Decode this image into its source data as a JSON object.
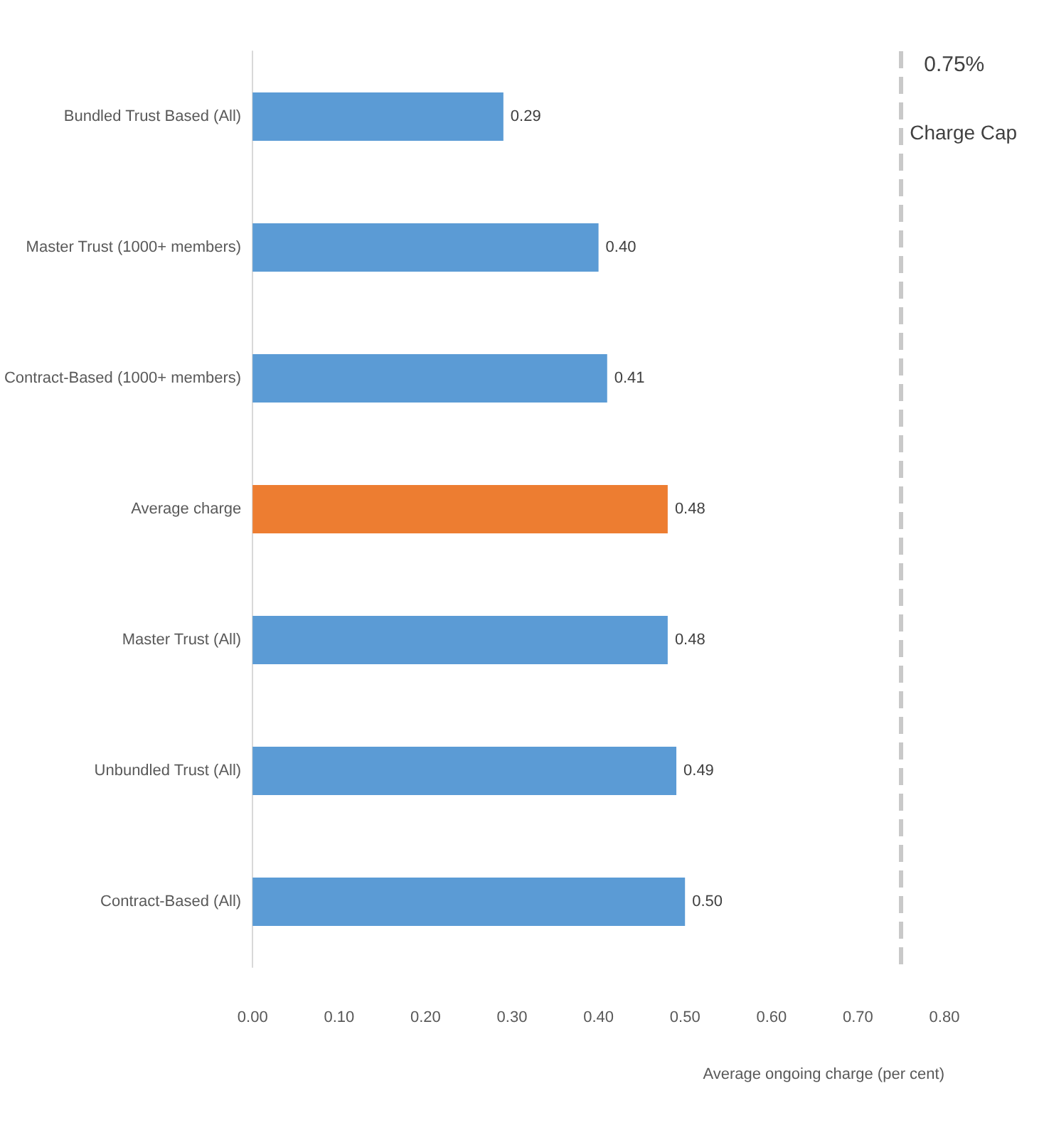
{
  "chart_data": {
    "type": "bar",
    "orientation": "horizontal",
    "categories": [
      "Bundled Trust Based (All)",
      "Master Trust (1000+ members)",
      "Contract-Based (1000+ members)",
      "Average charge",
      "Master Trust (All)",
      "Unbundled Trust (All)",
      "Contract-Based (All)"
    ],
    "values": [
      0.29,
      0.4,
      0.41,
      0.48,
      0.48,
      0.49,
      0.5
    ],
    "colors": [
      "#5b9bd5",
      "#5b9bd5",
      "#5b9bd5",
      "#ed7d31",
      "#5b9bd5",
      "#5b9bd5",
      "#5b9bd5"
    ],
    "value_labels": [
      "0.29",
      "0.40",
      "0.41",
      "0.48",
      "0.48",
      "0.49",
      "0.50"
    ],
    "xlim": [
      0,
      0.8
    ],
    "xticks": [
      {
        "value": 0,
        "label": "0.00"
      },
      {
        "value": 0.1,
        "label": "0.10"
      },
      {
        "value": 0.2,
        "label": "0.20"
      },
      {
        "value": 0.3,
        "label": "0.30"
      },
      {
        "value": 0.4,
        "label": "0.40"
      },
      {
        "value": 0.5,
        "label": "0.50"
      },
      {
        "value": 0.6,
        "label": "0.60"
      },
      {
        "value": 0.7,
        "label": "0.70"
      },
      {
        "value": 0.8,
        "label": "0.80"
      }
    ],
    "xlabel": "Average ongoing charge (per cent)",
    "ref_lines": [
      {
        "axis": "x",
        "value": 0.75,
        "label": "0.75%",
        "color": "#c9c9c9",
        "line_style": "dashed"
      }
    ],
    "annotations": [
      "Charge Cap"
    ],
    "grid": false
  }
}
